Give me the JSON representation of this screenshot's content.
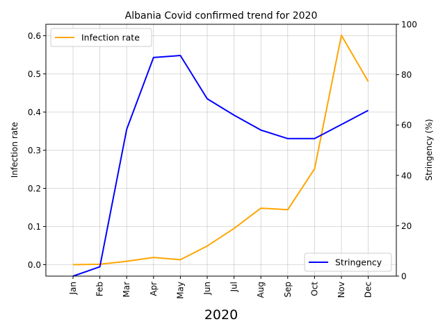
{
  "chart_data": {
    "type": "line",
    "title": "Albania Covid confirmed trend for 2020",
    "xlabel": "2020",
    "categories": [
      "Jan",
      "Feb",
      "Mar",
      "Apr",
      "May",
      "Jun",
      "Jul",
      "Aug",
      "Sep",
      "Oct",
      "Nov",
      "Dec"
    ],
    "grid": true,
    "left_axis": {
      "label": "Infection rate",
      "ylim": [
        -0.03,
        0.63
      ],
      "ticks": [
        "0.0",
        "0.1",
        "0.2",
        "0.3",
        "0.4",
        "0.5",
        "0.6"
      ]
    },
    "right_axis": {
      "label": "Stringency (%)",
      "ylim": [
        0,
        100
      ],
      "ticks": [
        "0",
        "20",
        "40",
        "60",
        "80",
        "100"
      ]
    },
    "series": [
      {
        "name": "Infection rate",
        "axis": "left",
        "color": "#ffa500",
        "legend": "top-left",
        "values": [
          0.0,
          0.001,
          0.009,
          0.019,
          0.013,
          0.049,
          0.095,
          0.148,
          0.144,
          0.251,
          0.601,
          0.48
        ]
      },
      {
        "name": "Stringency",
        "axis": "right",
        "color": "#0000ff",
        "legend": "bottom-right",
        "values": [
          0.0,
          3.7,
          58.3,
          86.8,
          87.6,
          70.4,
          63.9,
          58.0,
          54.6,
          54.6,
          60.2,
          65.8
        ]
      }
    ]
  }
}
